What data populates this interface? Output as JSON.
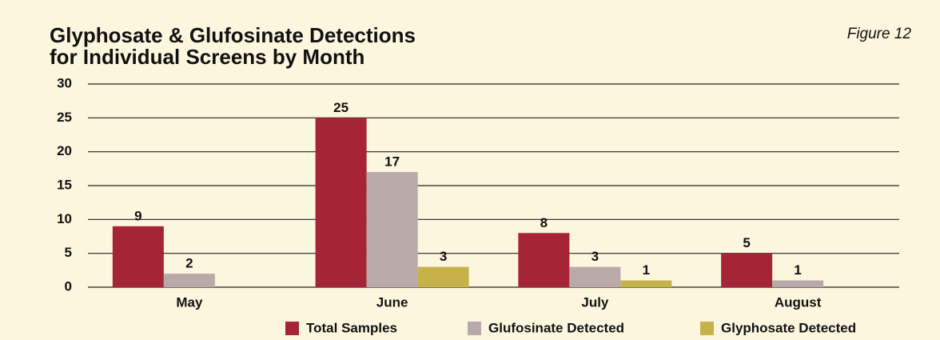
{
  "chart_data": {
    "type": "bar",
    "title": "Glyphosate & Glufosinate Detections",
    "subtitle": "for  Individual Screens by Month",
    "annotation": "Figure 12",
    "categories": [
      "May",
      "June",
      "July",
      "August"
    ],
    "series": [
      {
        "name": "Total Samples",
        "color": "#a52536",
        "values": [
          9,
          25,
          8,
          5
        ]
      },
      {
        "name": "Glufosinate Detected",
        "color": "#b9aaa9",
        "values": [
          2,
          17,
          3,
          1
        ]
      },
      {
        "name": "Glyphosate Detected",
        "color": "#c7b24a",
        "values": [
          null,
          3,
          1,
          null
        ]
      }
    ],
    "ylim": [
      0,
      30
    ],
    "yticks": [
      0,
      5,
      10,
      15,
      20,
      25,
      30
    ],
    "grid": true,
    "legend": "bottom"
  }
}
